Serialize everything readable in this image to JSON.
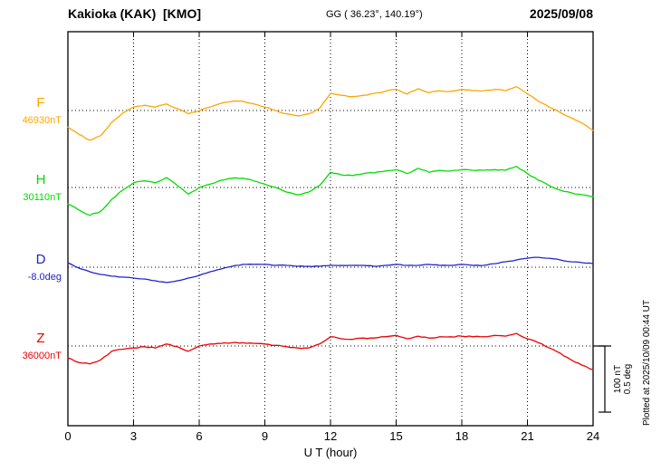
{
  "header": {
    "station": "Kakioka (KAK)  [KMO]",
    "coordinates": "GG ( 36.23°, 140.19°)",
    "date": "2025/09/08"
  },
  "xaxis": {
    "label": "U T (hour)",
    "ticks": [
      "0",
      "3",
      "6",
      "9",
      "12",
      "15",
      "18",
      "21",
      "24"
    ]
  },
  "scale_bar": {
    "nt_label": "100 nT",
    "deg_label": "0.5 deg"
  },
  "plotted_at": "Plotted at 2025/10/09 00:44 UT",
  "chart_data": {
    "type": "line",
    "title": "Kakioka (KAK) [KMO] magnetogram 2025/09/08",
    "x_unit": "UT hour",
    "xlim": [
      0,
      24
    ],
    "x_start": 0,
    "x_step": 0.5,
    "n_points": 49,
    "grid": "dotted vertical gridlines every 3 h; dotted horizontal baseline per trace",
    "scale": {
      "nT_per_division": 100,
      "deg_per_division": 0.5
    },
    "series": [
      {
        "name": "F",
        "baseline_value": "46930nT",
        "unit": "nT",
        "color": "#FFA500",
        "offsets": [
          -25,
          -36,
          -45,
          -38,
          -18,
          -4,
          5,
          8,
          5,
          10,
          3,
          -5,
          0,
          5,
          11,
          14,
          14,
          10,
          5,
          0,
          -5,
          -8,
          -5,
          3,
          26,
          23,
          21,
          23,
          26,
          29,
          32,
          25,
          33,
          27,
          30,
          29,
          32,
          30,
          30,
          32,
          30,
          36,
          25,
          14,
          5,
          -3,
          -11,
          -19,
          -30
        ]
      },
      {
        "name": "H",
        "baseline_value": "30110nT",
        "unit": "nT",
        "color": "#00DD00",
        "offsets": [
          -25,
          -34,
          -42,
          -36,
          -18,
          -4,
          7,
          10,
          7,
          15,
          3,
          -10,
          0,
          5,
          11,
          14,
          14,
          10,
          5,
          0,
          -7,
          -11,
          -7,
          3,
          23,
          19,
          18,
          21,
          22,
          25,
          27,
          21,
          29,
          23,
          26,
          25,
          27,
          26,
          26,
          27,
          26,
          32,
          21,
          11,
          3,
          -4,
          -8,
          -11,
          -14
        ]
      },
      {
        "name": "D",
        "baseline_value": "-8.0deg",
        "unit": "deg",
        "color": "#2222CC",
        "offsets": [
          0.034,
          -0.007,
          -0.034,
          -0.055,
          -0.068,
          -0.075,
          -0.082,
          -0.089,
          -0.103,
          -0.116,
          -0.103,
          -0.082,
          -0.062,
          -0.034,
          -0.014,
          0.007,
          0.021,
          0.021,
          0.021,
          0.014,
          0.014,
          0.007,
          0.007,
          0.007,
          0.014,
          0.014,
          0.014,
          0.014,
          0.007,
          0.014,
          0.021,
          0.014,
          0.014,
          0.021,
          0.014,
          0.014,
          0.021,
          0.014,
          0.014,
          0.027,
          0.041,
          0.055,
          0.068,
          0.075,
          0.068,
          0.055,
          0.041,
          0.034,
          0.027
        ]
      },
      {
        "name": "Z",
        "baseline_value": "36000nT",
        "unit": "nT",
        "color": "#EE0000",
        "offsets": [
          -18,
          -25,
          -27,
          -21,
          -8,
          -5,
          -3,
          -1,
          -3,
          3,
          -1,
          -8,
          0,
          3,
          4,
          5,
          5,
          4,
          3,
          1,
          -1,
          -3,
          -3,
          3,
          14,
          11,
          10,
          12,
          12,
          14,
          16,
          11,
          15,
          12,
          14,
          14,
          15,
          14,
          14,
          16,
          15,
          19,
          11,
          5,
          -3,
          -11,
          -21,
          -29,
          -36
        ]
      }
    ]
  }
}
